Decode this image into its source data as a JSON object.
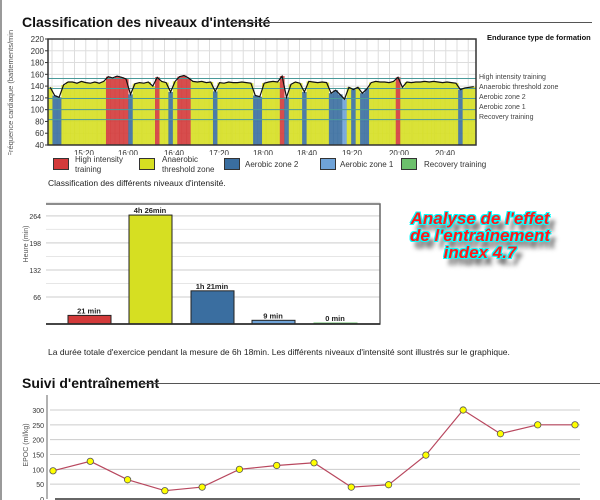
{
  "section1": {
    "title": "Classification des niveaux d'intensité",
    "legend_title": "Endurance type de formation",
    "zone_labels": [
      "High intensity training",
      "Anaerobic threshold zone",
      "Aerobic zone 2",
      "Aerobic zone 1",
      "Recovery training"
    ],
    "legend": [
      {
        "label_line1": "High intensity",
        "label_line2": "training",
        "color": "#d33a3a"
      },
      {
        "label_line1": "Anaerobic",
        "label_line2": "threshold zone",
        "color": "#d6df22"
      },
      {
        "label_line1": "Aerobic zone 2",
        "label_line2": "",
        "color": "#3a6ea0"
      },
      {
        "label_line1": "Aerobic zone 1",
        "label_line2": "",
        "color": "#6fa3d8"
      },
      {
        "label_line1": "Recovery training",
        "label_line2": "",
        "color": "#6cc06c"
      }
    ],
    "caption": "Classification des différents niveaux d'intensité.",
    "summary": "La durée totale d'exercice pendant la mesure de 6h 18min. Les différents niveaux d'intensité sont illustrés sur le graphique.",
    "effect_line1": "Analyse de l'effet",
    "effect_line2": "de l'entraînement",
    "effect_line3": "index 4.7"
  },
  "section2": {
    "title": "Suivi d'entraînement"
  },
  "chart_data": [
    {
      "type": "area",
      "ylabel": "Fréquence cardiaque (battements/min)",
      "ylim": [
        40,
        220
      ],
      "yticks": [
        "220",
        "200",
        "180",
        "160",
        "140",
        "120",
        "100",
        "80",
        "60",
        "40"
      ],
      "xticks": [
        "15:20",
        "16:00",
        "16:40",
        "17:20",
        "18:00",
        "18:40",
        "19:20",
        "20:00",
        "20:40"
      ],
      "x_range": [
        "14:48",
        "21:07"
      ],
      "zone_thresholds": [
        153,
        136,
        119,
        100,
        83
      ],
      "grid": true,
      "hr": [
        138,
        124,
        121,
        142,
        147,
        147,
        145,
        148,
        146,
        145,
        147,
        145,
        148,
        156,
        154,
        157,
        155,
        152,
        126,
        144,
        146,
        145,
        147,
        140,
        155,
        148,
        146,
        130,
        148,
        156,
        158,
        154,
        148,
        147,
        148,
        146,
        147,
        131,
        146,
        145,
        147,
        146,
        146,
        147,
        146,
        145,
        124,
        122,
        145,
        147,
        148,
        147,
        157,
        121,
        143,
        147,
        145,
        130,
        148,
        147,
        146,
        147,
        146,
        128,
        133,
        126,
        118,
        138,
        134,
        138,
        128,
        135,
        146,
        148,
        147,
        147,
        146,
        148,
        155,
        138,
        147,
        146,
        147,
        147,
        148,
        147,
        148,
        147,
        146,
        147,
        146,
        145,
        134,
        137,
        138,
        139
      ]
    },
    {
      "type": "bar",
      "ylabel": "Heure (min)",
      "ylim": [
        0,
        293
      ],
      "yticks": [
        "264",
        "198",
        "132",
        "66"
      ],
      "values": [
        21,
        266,
        81,
        9,
        0
      ],
      "labels": [
        "21 min",
        "4h 26min",
        "1h 21min",
        "9 min",
        "0 min"
      ],
      "colors": [
        "#d33a3a",
        "#d6df22",
        "#3a6ea0",
        "#6fa3d8",
        "#6cc06c"
      ],
      "grid": true
    },
    {
      "type": "line",
      "ylabel": "EPOC (ml/kg)",
      "ylim": [
        0,
        320
      ],
      "yticks": [
        "300",
        "250",
        "200",
        "150",
        "100",
        "50",
        "0"
      ],
      "values": [
        95,
        127,
        65,
        28,
        40,
        100,
        113,
        122,
        40,
        48,
        148,
        300,
        220,
        250,
        250
      ],
      "line_color": "#b8475e",
      "marker_color": "#ffff00",
      "grid": true
    }
  ]
}
